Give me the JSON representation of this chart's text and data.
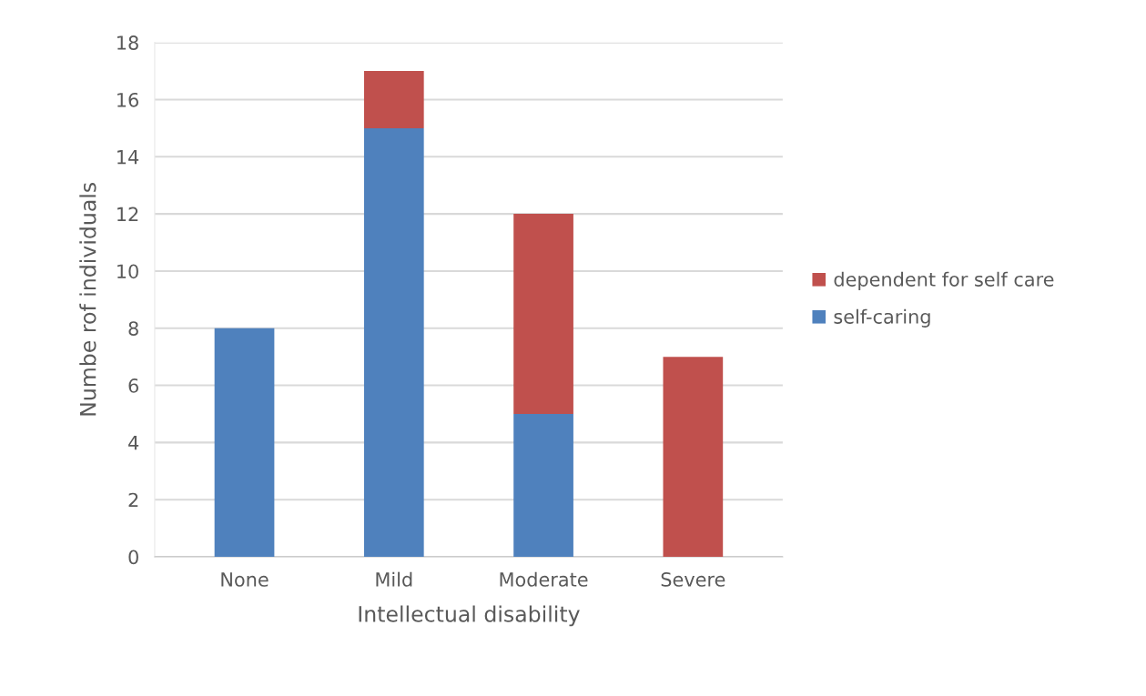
{
  "chart_data": {
    "type": "bar",
    "stacked": true,
    "xlabel": "Intellectual disability",
    "ylabel": "Numbe rof individuals",
    "categories": [
      "None",
      "Mild",
      "Moderate",
      "Severe"
    ],
    "series": [
      {
        "name": "self-caring",
        "color": "#4f81bd",
        "values": [
          8,
          15,
          5,
          0
        ]
      },
      {
        "name": "dependent for self care",
        "color": "#c0504d",
        "values": [
          0,
          2,
          7,
          7
        ]
      }
    ],
    "ylim": [
      0,
      18
    ],
    "yticks": [
      0,
      2,
      4,
      6,
      8,
      10,
      12,
      14,
      16,
      18
    ],
    "grid": "y",
    "legend": "right"
  }
}
